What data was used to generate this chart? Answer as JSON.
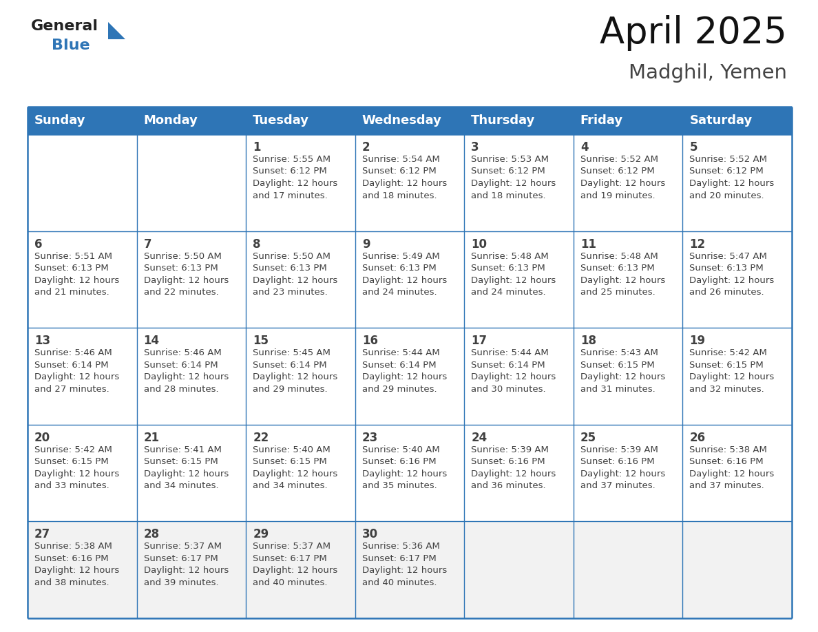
{
  "title": "April 2025",
  "subtitle": "Madghil, Yemen",
  "header_bg": "#2E75B6",
  "header_text_color": "#FFFFFF",
  "cell_bg_white": "#FFFFFF",
  "cell_bg_gray": "#F2F2F2",
  "border_color": "#2E75B6",
  "text_color": "#404040",
  "day_headers": [
    "Sunday",
    "Monday",
    "Tuesday",
    "Wednesday",
    "Thursday",
    "Friday",
    "Saturday"
  ],
  "weeks": [
    [
      {
        "day": "",
        "info": ""
      },
      {
        "day": "",
        "info": ""
      },
      {
        "day": "1",
        "info": "Sunrise: 5:55 AM\nSunset: 6:12 PM\nDaylight: 12 hours\nand 17 minutes."
      },
      {
        "day": "2",
        "info": "Sunrise: 5:54 AM\nSunset: 6:12 PM\nDaylight: 12 hours\nand 18 minutes."
      },
      {
        "day": "3",
        "info": "Sunrise: 5:53 AM\nSunset: 6:12 PM\nDaylight: 12 hours\nand 18 minutes."
      },
      {
        "day": "4",
        "info": "Sunrise: 5:52 AM\nSunset: 6:12 PM\nDaylight: 12 hours\nand 19 minutes."
      },
      {
        "day": "5",
        "info": "Sunrise: 5:52 AM\nSunset: 6:12 PM\nDaylight: 12 hours\nand 20 minutes."
      }
    ],
    [
      {
        "day": "6",
        "info": "Sunrise: 5:51 AM\nSunset: 6:13 PM\nDaylight: 12 hours\nand 21 minutes."
      },
      {
        "day": "7",
        "info": "Sunrise: 5:50 AM\nSunset: 6:13 PM\nDaylight: 12 hours\nand 22 minutes."
      },
      {
        "day": "8",
        "info": "Sunrise: 5:50 AM\nSunset: 6:13 PM\nDaylight: 12 hours\nand 23 minutes."
      },
      {
        "day": "9",
        "info": "Sunrise: 5:49 AM\nSunset: 6:13 PM\nDaylight: 12 hours\nand 24 minutes."
      },
      {
        "day": "10",
        "info": "Sunrise: 5:48 AM\nSunset: 6:13 PM\nDaylight: 12 hours\nand 24 minutes."
      },
      {
        "day": "11",
        "info": "Sunrise: 5:48 AM\nSunset: 6:13 PM\nDaylight: 12 hours\nand 25 minutes."
      },
      {
        "day": "12",
        "info": "Sunrise: 5:47 AM\nSunset: 6:13 PM\nDaylight: 12 hours\nand 26 minutes."
      }
    ],
    [
      {
        "day": "13",
        "info": "Sunrise: 5:46 AM\nSunset: 6:14 PM\nDaylight: 12 hours\nand 27 minutes."
      },
      {
        "day": "14",
        "info": "Sunrise: 5:46 AM\nSunset: 6:14 PM\nDaylight: 12 hours\nand 28 minutes."
      },
      {
        "day": "15",
        "info": "Sunrise: 5:45 AM\nSunset: 6:14 PM\nDaylight: 12 hours\nand 29 minutes."
      },
      {
        "day": "16",
        "info": "Sunrise: 5:44 AM\nSunset: 6:14 PM\nDaylight: 12 hours\nand 29 minutes."
      },
      {
        "day": "17",
        "info": "Sunrise: 5:44 AM\nSunset: 6:14 PM\nDaylight: 12 hours\nand 30 minutes."
      },
      {
        "day": "18",
        "info": "Sunrise: 5:43 AM\nSunset: 6:15 PM\nDaylight: 12 hours\nand 31 minutes."
      },
      {
        "day": "19",
        "info": "Sunrise: 5:42 AM\nSunset: 6:15 PM\nDaylight: 12 hours\nand 32 minutes."
      }
    ],
    [
      {
        "day": "20",
        "info": "Sunrise: 5:42 AM\nSunset: 6:15 PM\nDaylight: 12 hours\nand 33 minutes."
      },
      {
        "day": "21",
        "info": "Sunrise: 5:41 AM\nSunset: 6:15 PM\nDaylight: 12 hours\nand 34 minutes."
      },
      {
        "day": "22",
        "info": "Sunrise: 5:40 AM\nSunset: 6:15 PM\nDaylight: 12 hours\nand 34 minutes."
      },
      {
        "day": "23",
        "info": "Sunrise: 5:40 AM\nSunset: 6:16 PM\nDaylight: 12 hours\nand 35 minutes."
      },
      {
        "day": "24",
        "info": "Sunrise: 5:39 AM\nSunset: 6:16 PM\nDaylight: 12 hours\nand 36 minutes."
      },
      {
        "day": "25",
        "info": "Sunrise: 5:39 AM\nSunset: 6:16 PM\nDaylight: 12 hours\nand 37 minutes."
      },
      {
        "day": "26",
        "info": "Sunrise: 5:38 AM\nSunset: 6:16 PM\nDaylight: 12 hours\nand 37 minutes."
      }
    ],
    [
      {
        "day": "27",
        "info": "Sunrise: 5:38 AM\nSunset: 6:16 PM\nDaylight: 12 hours\nand 38 minutes."
      },
      {
        "day": "28",
        "info": "Sunrise: 5:37 AM\nSunset: 6:17 PM\nDaylight: 12 hours\nand 39 minutes."
      },
      {
        "day": "29",
        "info": "Sunrise: 5:37 AM\nSunset: 6:17 PM\nDaylight: 12 hours\nand 40 minutes."
      },
      {
        "day": "30",
        "info": "Sunrise: 5:36 AM\nSunset: 6:17 PM\nDaylight: 12 hours\nand 40 minutes."
      },
      {
        "day": "",
        "info": ""
      },
      {
        "day": "",
        "info": ""
      },
      {
        "day": "",
        "info": ""
      }
    ]
  ],
  "logo_general_color": "#222222",
  "logo_blue_color": "#2E75B6",
  "title_fontsize": 38,
  "subtitle_fontsize": 21,
  "header_fontsize": 13,
  "day_num_fontsize": 12,
  "info_fontsize": 9.5,
  "week_row_colors": [
    "#FFFFFF",
    "#FFFFFF",
    "#FFFFFF",
    "#FFFFFF",
    "#F0F0F0"
  ]
}
